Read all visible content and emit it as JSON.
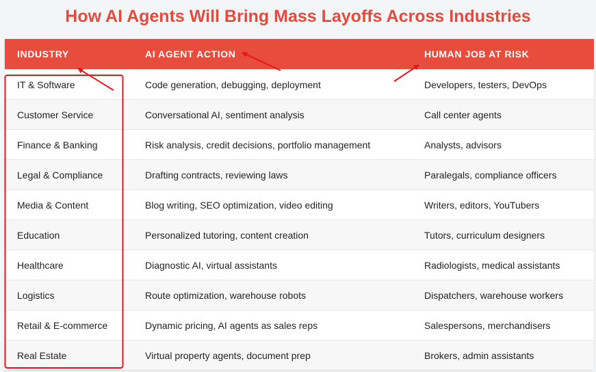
{
  "title": "How AI Agents Will Bring Mass Layoffs Across Industries",
  "colors": {
    "accent": "#e74c3c",
    "title": "#e24b3e",
    "annotation": "#e8141a"
  },
  "table": {
    "headers": [
      "INDUSTRY",
      "AI AGENT ACTION",
      "HUMAN JOB AT RISK"
    ],
    "rows": [
      [
        "IT & Software",
        "Code generation, debugging, deployment",
        "Developers, testers, DevOps"
      ],
      [
        "Customer Service",
        "Conversational AI, sentiment analysis",
        "Call center agents"
      ],
      [
        "Finance & Banking",
        "Risk analysis, credit decisions, portfolio management",
        "Analysts, advisors"
      ],
      [
        "Legal & Compliance",
        "Drafting contracts, reviewing laws",
        "Paralegals, compliance officers"
      ],
      [
        "Media & Content",
        "Blog writing, SEO optimization, video editing",
        "Writers, editors, YouTubers"
      ],
      [
        "Education",
        "Personalized tutoring, content creation",
        "Tutors, curriculum designers"
      ],
      [
        "Healthcare",
        "Diagnostic AI, virtual assistants",
        "Radiologists, medical assistants"
      ],
      [
        "Logistics",
        "Route optimization, warehouse robots",
        "Dispatchers, warehouse workers"
      ],
      [
        "Retail & E-commerce",
        "Dynamic pricing, AI agents as sales reps",
        "Salespersons, merchandisers"
      ],
      [
        "Real Estate",
        "Virtual property agents, document prep",
        "Brokers, admin assistants"
      ]
    ]
  }
}
